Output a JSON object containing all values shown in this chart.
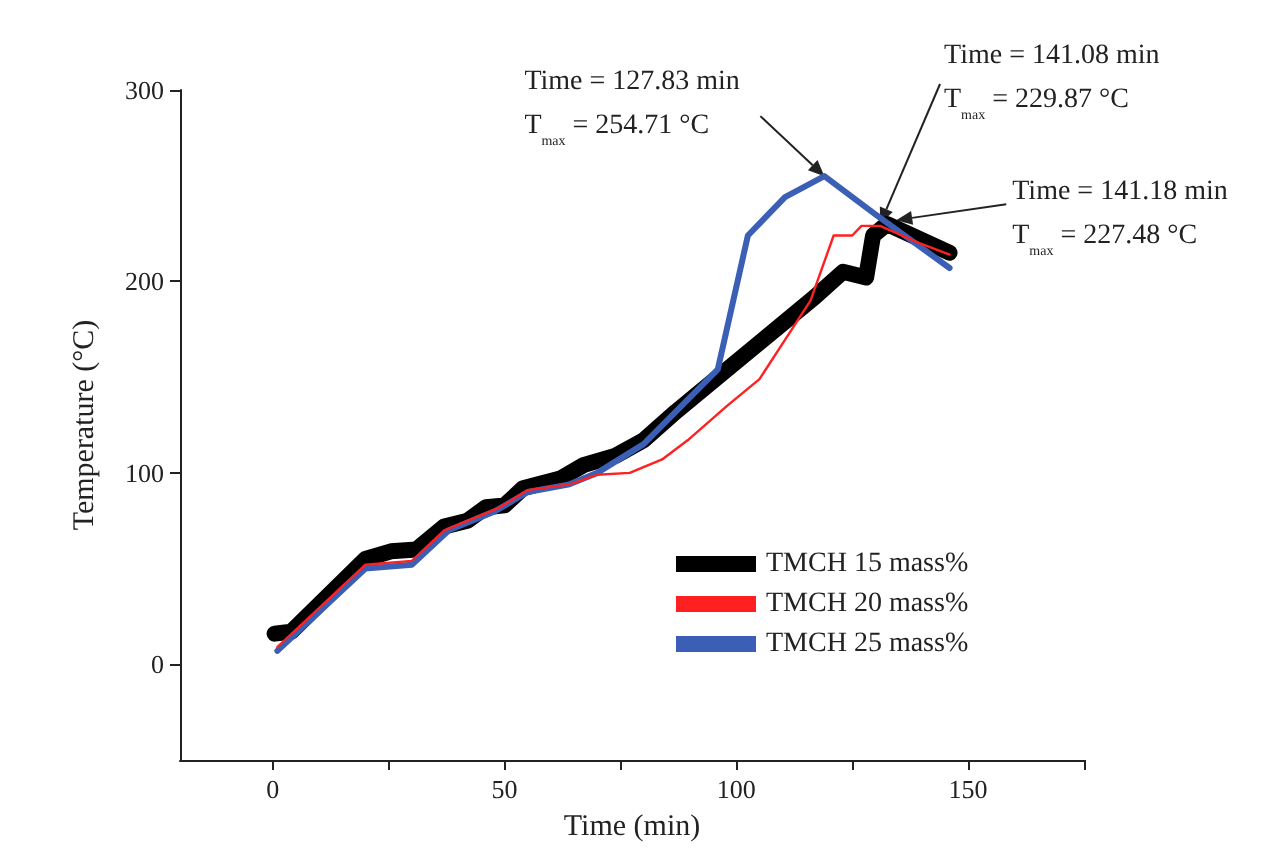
{
  "chart_data": {
    "type": "line",
    "xlabel": "Time (min)",
    "ylabel": "Temperature (°C)",
    "xlim": [
      -20,
      175
    ],
    "xticks": [
      0,
      {
        "value": 25,
        "label": null
      },
      50,
      {
        "value": 75,
        "label": null
      },
      100,
      {
        "value": 125,
        "label": null
      },
      150,
      {
        "value": 175,
        "label": null
      }
    ],
    "ylim": [
      -50,
      300
    ],
    "yticks": [
      0,
      100,
      200,
      300
    ],
    "grid": false,
    "legend": "right",
    "marker": "none",
    "line_style": "solid",
    "series": [
      {
        "name": "TMCH 15 mass%",
        "color": "#000000",
        "x": [
          0.4,
          4,
          20,
          25.5,
          31,
          37,
          42,
          46,
          50,
          54,
          62,
          67,
          74,
          80,
          87,
          96,
          106,
          117,
          123,
          128,
          129.5,
          132.5,
          146
        ],
        "values": [
          16,
          17,
          55,
          59,
          60,
          72,
          75,
          82,
          83,
          92,
          97,
          104,
          109,
          117,
          132,
          150,
          170,
          192,
          205,
          202,
          224,
          230,
          215
        ]
      },
      {
        "name": "TMCH 20 mass%",
        "color": "#ff2020",
        "x": [
          1,
          20,
          30,
          37,
          49,
          55,
          64,
          70,
          77,
          84,
          89.5,
          98,
          105,
          116,
          121,
          125,
          127,
          131,
          139.5,
          146
        ],
        "values": [
          9,
          52,
          54,
          70,
          82,
          91,
          94,
          99,
          100,
          107,
          117,
          135,
          149,
          190,
          224,
          224,
          229,
          229,
          220,
          214
        ]
      },
      {
        "name": "TMCH 25 mass%",
        "color": "#3a5fb5",
        "x": [
          1,
          20,
          30,
          38,
          48,
          55,
          64,
          70,
          80,
          96,
          102.5,
          110.5,
          119,
          130,
          146
        ],
        "values": [
          7,
          50,
          52,
          70,
          80,
          90,
          94,
          100,
          115,
          154,
          224,
          244,
          255,
          235,
          207
        ]
      }
    ],
    "annotations": [
      {
        "text": "Time = 127.83 min\nT$_{max}$ = 254.71 °C",
        "x": 119,
        "y": 255
      },
      {
        "text": "Time = 141.08 min\nT$_{max}$ = 229.87 °C",
        "x": 131,
        "y": 230
      },
      {
        "text": "Time = 141.18 min\nT$_{max}$ = 227.48 °C",
        "x": 134.5,
        "y": 232
      }
    ]
  }
}
